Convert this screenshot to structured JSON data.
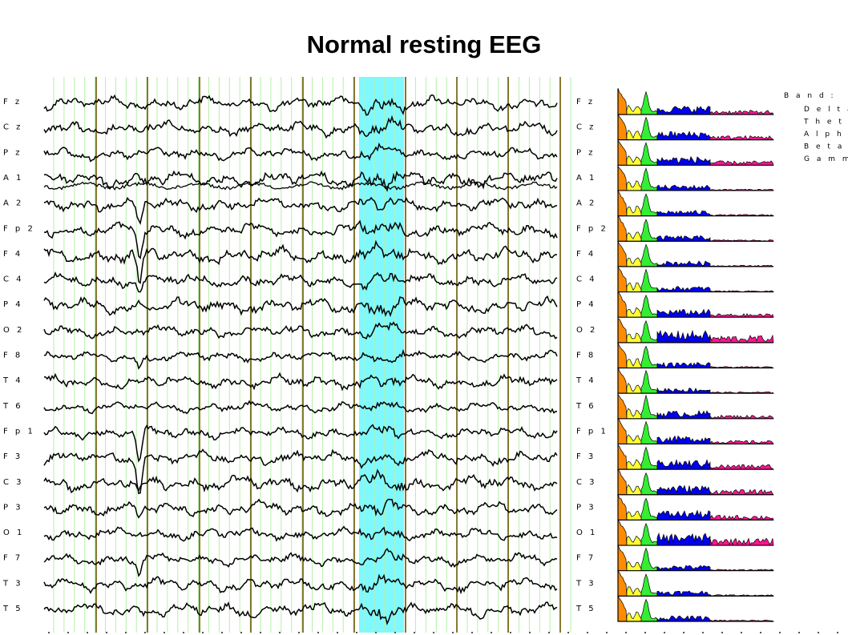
{
  "chart_data": {
    "type": "line",
    "title": "Normal resting EEG",
    "channels": [
      "Fz",
      "Cz",
      "Pz",
      "A1",
      "A2",
      "Fp2",
      "F4",
      "C4",
      "P4",
      "O2",
      "F8",
      "T4",
      "T6",
      "Fp1",
      "F3",
      "C3",
      "P3",
      "O1",
      "F7",
      "T3",
      "T5"
    ],
    "channel_labels": [
      "F z",
      "C z",
      "P z",
      "A 1",
      "A 2",
      "F p 2",
      "F 4",
      "C 4",
      "P 4",
      "O 2",
      "F 8",
      "T 4",
      "T 6",
      "F p 1",
      "F 3",
      "C 3",
      "P 3",
      "O 1",
      "F 7",
      "T 3",
      "T 5"
    ],
    "highlight_window": "cyan",
    "grid": true
  },
  "legend": {
    "heading": "B a n d :",
    "bands": [
      {
        "name": "D e l t a",
        "color": "#ff8c00"
      },
      {
        "name": "T h e t a",
        "color": "#ffff33"
      },
      {
        "name": "A l p h a",
        "color": "#33ee33"
      },
      {
        "name": "B e t a",
        "color": "#0000ee"
      },
      {
        "name": "G a m m a",
        "color": "#ff1493"
      }
    ]
  },
  "colors": {
    "trace": "#000000",
    "minor_grid": "#b4f2a6",
    "major_grid": "#6b5a00",
    "highlight": "#7ff9ff"
  }
}
